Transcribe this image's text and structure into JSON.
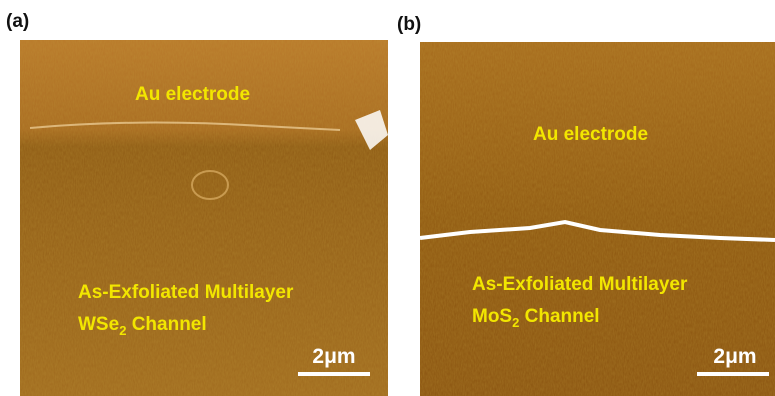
{
  "panels": [
    {
      "label": "(a)",
      "top_text": "Au electrode",
      "line1": "As-Exfoliated Multilayer",
      "line2": {
        "main": "WSe",
        "sub": "2",
        "rest": " Channel"
      },
      "scale_bar": "2μm"
    },
    {
      "label": "(b)",
      "top_text": "Au electrode",
      "line1": "As-Exfoliated Multilayer",
      "line2": {
        "main": "MoS",
        "sub": "2",
        "rest": " Channel"
      },
      "scale_bar": "2μm"
    }
  ]
}
